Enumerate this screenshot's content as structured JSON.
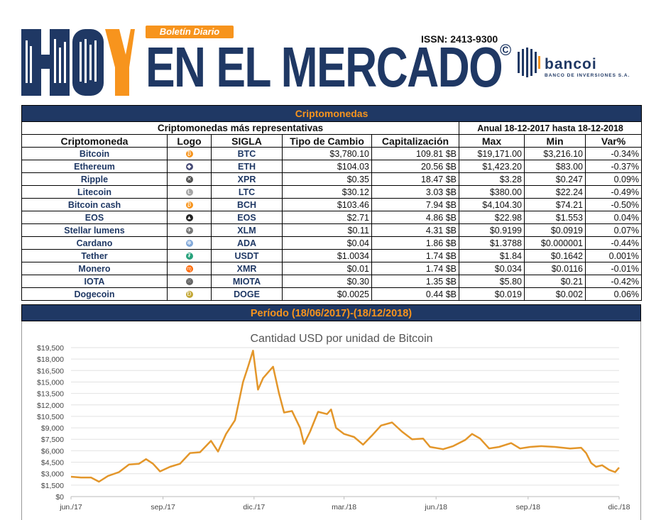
{
  "header": {
    "brand_hoy": "HOY",
    "boletin": "Boletín Diario",
    "title": "EN EL MERCADO",
    "copyright": "©",
    "issn": "ISSN: 2413-9300",
    "bank_name": "bancoi",
    "bank_sub": "BANCO DE INVERSIONES S.A."
  },
  "colors": {
    "navy": "#1f3864",
    "orange": "#f7941d",
    "line": "#e3962a"
  },
  "table": {
    "band_title": "Criptomonedas",
    "sub_left": "Criptomonedas más representativas",
    "sub_right": "Anual 18-12-2017 hasta 18-12-2018",
    "columns": [
      "Criptomoneda",
      "Logo",
      "SIGLA",
      "Tipo de Cambio",
      "Capitalización",
      "Max",
      "Min",
      "Var%"
    ],
    "rows": [
      {
        "name": "Bitcoin",
        "icon": "bitcoin-icon",
        "sigla": "BTC",
        "tipo": "$3,780.10",
        "cap": "109.81 $B",
        "max": "$19,171.00",
        "min": "$3,216.10",
        "var": "-0.34%"
      },
      {
        "name": "Ethereum",
        "icon": "ethereum-icon",
        "sigla": "ETH",
        "tipo": "$104.03",
        "cap": "20.56 $B",
        "max": "$1,423.20",
        "min": "$83.00",
        "var": "-0.37%"
      },
      {
        "name": "Ripple",
        "icon": "ripple-icon",
        "sigla": "XPR",
        "tipo": "$0.35",
        "cap": "18.47 $B",
        "max": "$3.28",
        "min": "$0.247",
        "var": "0.09%"
      },
      {
        "name": "Litecoin",
        "icon": "litecoin-icon",
        "sigla": "LTC",
        "tipo": "$30.12",
        "cap": "3.03 $B",
        "max": "$380.00",
        "min": "$22.24",
        "var": "-0.49%"
      },
      {
        "name": "Bitcoin cash",
        "icon": "bitcoin-cash-icon",
        "sigla": "BCH",
        "tipo": "$103.46",
        "cap": "7.94 $B",
        "max": "$4,104.30",
        "min": "$74.21",
        "var": "-0.50%"
      },
      {
        "name": "EOS",
        "icon": "eos-icon",
        "sigla": "EOS",
        "tipo": "$2.71",
        "cap": "4.86 $B",
        "max": "$22.98",
        "min": "$1.553",
        "var": "0.04%"
      },
      {
        "name": "Stellar lumens",
        "icon": "stellar-icon",
        "sigla": "XLM",
        "tipo": "$0.11",
        "cap": "4.31 $B",
        "max": "$0.9199",
        "min": "$0.0919",
        "var": "0.07%"
      },
      {
        "name": "Cardano",
        "icon": "cardano-icon",
        "sigla": "ADA",
        "tipo": "$0.04",
        "cap": "1.86 $B",
        "max": "$1.3788",
        "min": "$0.000001",
        "var": "-0.44%"
      },
      {
        "name": "Tether",
        "icon": "tether-icon",
        "sigla": "USDT",
        "tipo": "$1.0034",
        "cap": "1.74 $B",
        "max": "$1.84",
        "min": "$0.1642",
        "var": "0.001%"
      },
      {
        "name": "Monero",
        "icon": "monero-icon",
        "sigla": "XMR",
        "tipo": "$0.01",
        "cap": "1.74 $B",
        "max": "$0.034",
        "min": "$0.0116",
        "var": "-0.01%"
      },
      {
        "name": "IOTA",
        "icon": "iota-icon",
        "sigla": "MIOTA",
        "tipo": "$0.30",
        "cap": "1.35 $B",
        "max": "$5.80",
        "min": "$0.21",
        "var": "-0.42%"
      },
      {
        "name": "Dogecoin",
        "icon": "dogecoin-icon",
        "sigla": "DOGE",
        "tipo": "$0.0025",
        "cap": "0.44 $B",
        "max": "$0.019",
        "min": "$0.002",
        "var": "0.06%"
      }
    ]
  },
  "periodo": "Período (18/06/2017)-(18/12/2018)",
  "chart_data": {
    "type": "line",
    "title": "Cantidad USD por unidad de Bitcoin",
    "xlabel": "",
    "ylabel": "",
    "x_ticks": [
      "jun./17",
      "sep./17",
      "dic./17",
      "mar./18",
      "jun./18",
      "sep./18",
      "dic./18"
    ],
    "y_ticks": [
      "$0",
      "$1,500",
      "$3,000",
      "$4,500",
      "$6,000",
      "$7,500",
      "$9,000",
      "$10,500",
      "$12,000",
      "$13,500",
      "$15,000",
      "$16,500",
      "$18,000",
      "$19,500"
    ],
    "ylim": [
      0,
      19500
    ],
    "xlim": [
      "2017-06-18",
      "2018-12-18"
    ],
    "grid": true,
    "series": [
      {
        "values": [
          [
            "2017-06-18",
            2600
          ],
          [
            "2017-06-28",
            2500
          ],
          [
            "2017-07-08",
            2500
          ],
          [
            "2017-07-16",
            1950
          ],
          [
            "2017-07-25",
            2700
          ],
          [
            "2017-08-05",
            3200
          ],
          [
            "2017-08-15",
            4200
          ],
          [
            "2017-08-25",
            4300
          ],
          [
            "2017-09-01",
            4900
          ],
          [
            "2017-09-08",
            4300
          ],
          [
            "2017-09-15",
            3300
          ],
          [
            "2017-09-25",
            3900
          ],
          [
            "2017-10-05",
            4300
          ],
          [
            "2017-10-15",
            5700
          ],
          [
            "2017-10-25",
            5800
          ],
          [
            "2017-11-05",
            7300
          ],
          [
            "2017-11-12",
            5900
          ],
          [
            "2017-11-20",
            8200
          ],
          [
            "2017-11-29",
            10000
          ],
          [
            "2017-12-07",
            15000
          ],
          [
            "2017-12-12",
            17000
          ],
          [
            "2017-12-17",
            19100
          ],
          [
            "2017-12-22",
            14000
          ],
          [
            "2017-12-27",
            15500
          ],
          [
            "2018-01-06",
            17000
          ],
          [
            "2018-01-12",
            13500
          ],
          [
            "2018-01-17",
            11000
          ],
          [
            "2018-01-25",
            11200
          ],
          [
            "2018-02-02",
            9000
          ],
          [
            "2018-02-06",
            6900
          ],
          [
            "2018-02-12",
            8500
          ],
          [
            "2018-02-20",
            11100
          ],
          [
            "2018-03-01",
            10800
          ],
          [
            "2018-03-05",
            11400
          ],
          [
            "2018-03-10",
            9000
          ],
          [
            "2018-03-18",
            8200
          ],
          [
            "2018-03-28",
            7800
          ],
          [
            "2018-04-06",
            6800
          ],
          [
            "2018-04-15",
            8000
          ],
          [
            "2018-04-24",
            9300
          ],
          [
            "2018-05-05",
            9700
          ],
          [
            "2018-05-15",
            8500
          ],
          [
            "2018-05-25",
            7500
          ],
          [
            "2018-06-05",
            7600
          ],
          [
            "2018-06-12",
            6500
          ],
          [
            "2018-06-25",
            6200
          ],
          [
            "2018-07-05",
            6600
          ],
          [
            "2018-07-17",
            7400
          ],
          [
            "2018-07-24",
            8200
          ],
          [
            "2018-08-01",
            7600
          ],
          [
            "2018-08-10",
            6300
          ],
          [
            "2018-08-20",
            6500
          ],
          [
            "2018-09-01",
            7000
          ],
          [
            "2018-09-10",
            6300
          ],
          [
            "2018-09-20",
            6500
          ],
          [
            "2018-10-01",
            6600
          ],
          [
            "2018-10-15",
            6500
          ],
          [
            "2018-10-30",
            6300
          ],
          [
            "2018-11-10",
            6400
          ],
          [
            "2018-11-15",
            5700
          ],
          [
            "2018-11-20",
            4400
          ],
          [
            "2018-11-25",
            3900
          ],
          [
            "2018-12-01",
            4100
          ],
          [
            "2018-12-08",
            3500
          ],
          [
            "2018-12-14",
            3200
          ],
          [
            "2018-12-18",
            3800
          ]
        ]
      }
    ]
  }
}
